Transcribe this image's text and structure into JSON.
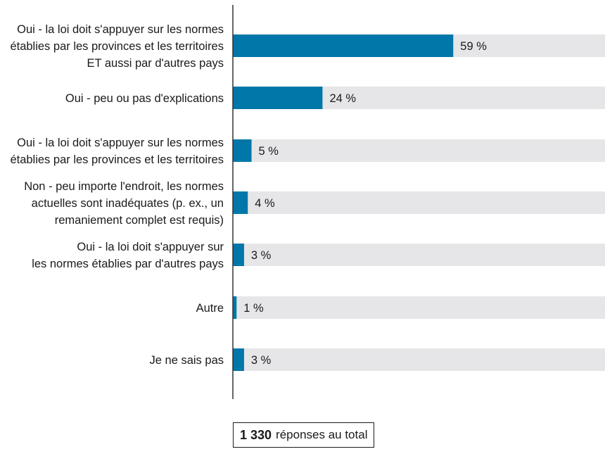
{
  "chart_data": {
    "type": "bar",
    "orientation": "horizontal",
    "categories": [
      [
        "Oui - la loi doit s'appuyer sur les normes",
        "établies par les provinces et les territoires",
        "ET aussi par d'autres pays"
      ],
      [
        "Oui - peu ou pas d'explications"
      ],
      [
        "Oui - la loi doit s'appuyer sur les normes",
        "établies par les provinces et les territoires"
      ],
      [
        "Non - peu importe l'endroit, les normes",
        "actuelles sont inadéquates (p. ex., un",
        "remaniement complet est requis)"
      ],
      [
        "Oui - la loi doit s'appuyer sur",
        "les normes établies par d'autres pays"
      ],
      [
        "Autre"
      ],
      [
        "Je ne sais pas"
      ]
    ],
    "values": [
      59,
      24,
      5,
      4,
      3,
      1,
      3
    ],
    "value_labels": [
      "59 %",
      "24 %",
      "5 %",
      "4 %",
      "3 %",
      "1 %",
      "3 %"
    ],
    "xlim": [
      0,
      100
    ],
    "colors": {
      "bar": "#0077a8",
      "track": "#e6e6e8",
      "axis": "#333333"
    }
  },
  "total": {
    "count": "1 330",
    "label": "réponses au total"
  }
}
